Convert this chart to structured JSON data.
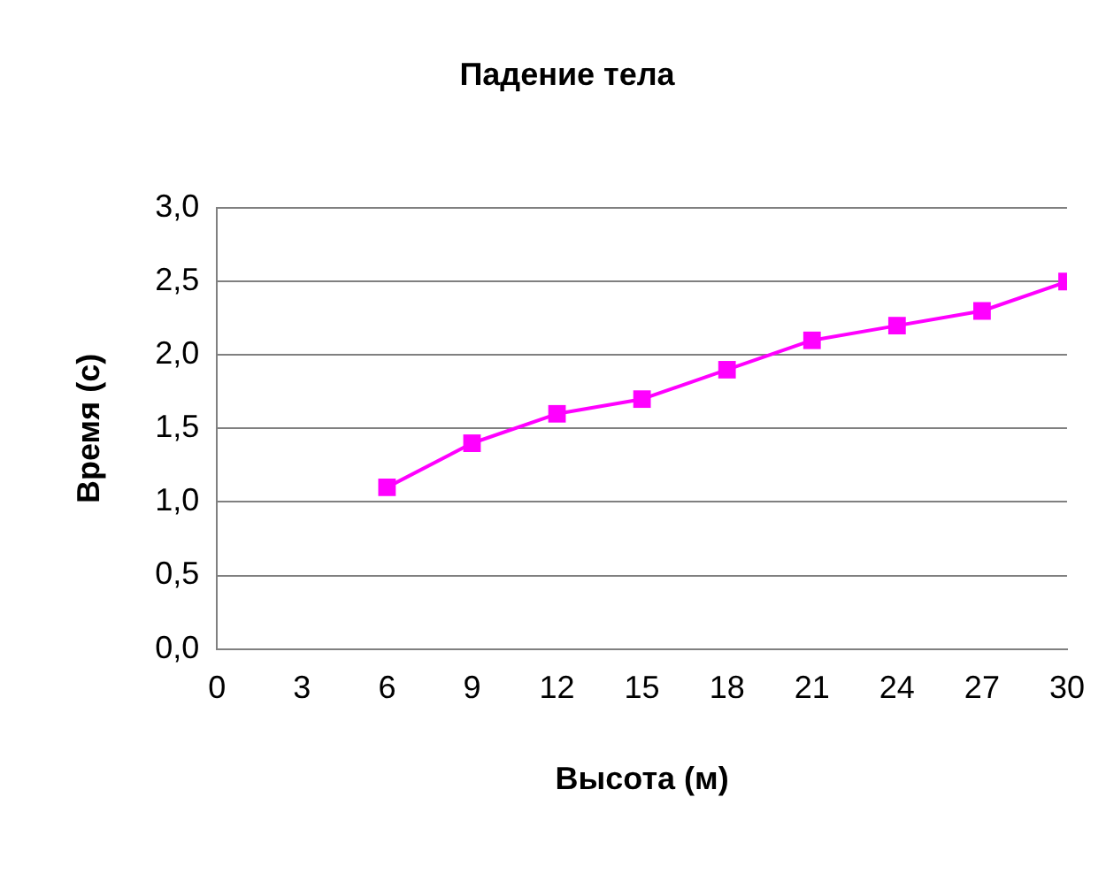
{
  "chart_data": {
    "type": "line",
    "title": "Падение тела",
    "xlabel": "Высота (м)",
    "ylabel": "Время (с)",
    "x": [
      6,
      9,
      12,
      15,
      18,
      21,
      24,
      27,
      30
    ],
    "series": [
      {
        "color": "#ff00ff",
        "values": [
          1.1,
          1.4,
          1.6,
          1.7,
          1.9,
          2.1,
          2.2,
          2.3,
          2.5
        ]
      }
    ],
    "xlim": [
      0,
      30
    ],
    "xticks": [
      0,
      3,
      6,
      9,
      12,
      15,
      18,
      21,
      24,
      27,
      30
    ],
    "ylim": [
      0,
      3
    ],
    "yticks": [
      {
        "value": 0,
        "label": "0,0"
      },
      {
        "value": 0.5,
        "label": "0,5"
      },
      {
        "value": 1,
        "label": "1,0"
      },
      {
        "value": 1.5,
        "label": "1,5"
      },
      {
        "value": 2,
        "label": "2,0"
      },
      {
        "value": 2.5,
        "label": "2,5"
      },
      {
        "value": 3,
        "label": "3,0"
      }
    ],
    "grid": "y",
    "legend": false,
    "marker": "square",
    "line_style": "solid"
  }
}
